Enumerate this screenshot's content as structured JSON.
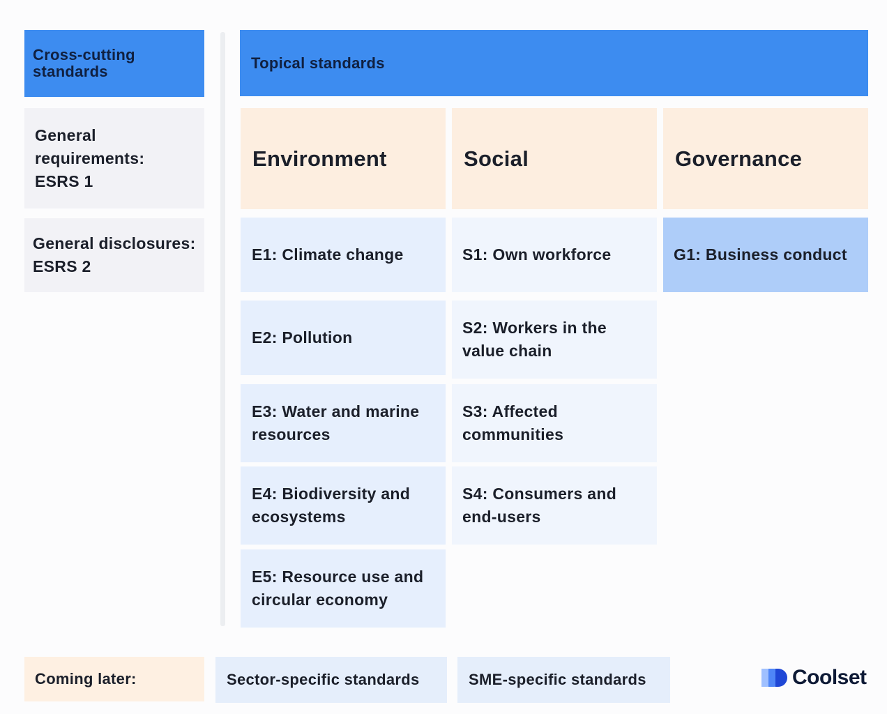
{
  "cross_cutting": {
    "header": "Cross-cutting standards",
    "general_requirements": "General requirements: ESRS 1",
    "general_disclosures": "General disclosures: ESRS 2"
  },
  "topical": {
    "header": "Topical standards",
    "columns": {
      "environment": {
        "title": "Environment",
        "items": [
          "E1: Climate change",
          "E2: Pollution",
          "E3: Water and marine resources",
          "E4: Biodiversity and ecosystems",
          "E5: Resource use and circular economy"
        ]
      },
      "social": {
        "title": "Social",
        "items": [
          "S1: Own workforce",
          "S2: Workers in the value chain",
          "S3: Affected communities",
          "S4: Consumers and end-users"
        ]
      },
      "governance": {
        "title": "Governance",
        "items": [
          "G1: Business conduct"
        ]
      }
    }
  },
  "coming_later": {
    "label": "Coming later:",
    "items": [
      "Sector-specific standards",
      "SME-specific standards"
    ]
  },
  "brand": {
    "name": "Coolset",
    "icon": "coolset-logo-icon"
  },
  "colors": {
    "header_blue": "#3d8cf0",
    "peach": "#fdeee0",
    "light_blue": "#e6effd",
    "strong_blue": "#aecdf9",
    "grey": "#f2f2f6"
  }
}
